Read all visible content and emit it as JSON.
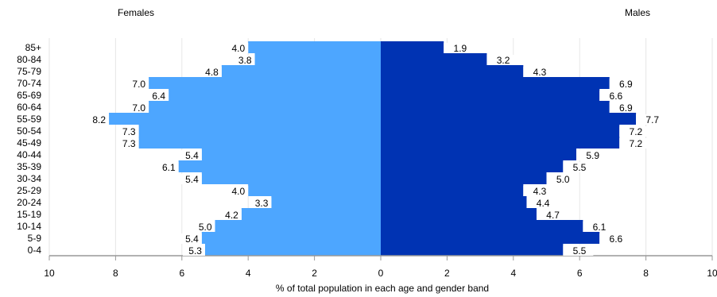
{
  "chart_data": {
    "type": "bar",
    "orientation": "horizontal",
    "layout": "population-pyramid",
    "categories": [
      "85+",
      "80-84",
      "75-79",
      "70-74",
      "65-69",
      "60-64",
      "55-59",
      "50-54",
      "45-49",
      "40-44",
      "35-39",
      "30-34",
      "25-29",
      "20-24",
      "15-19",
      "10-14",
      "5-9",
      "0-4"
    ],
    "series": [
      {
        "name": "Females",
        "side": "left",
        "color": "#4da6ff",
        "values": [
          4.0,
          3.8,
          4.8,
          7.0,
          6.4,
          7.0,
          8.2,
          7.3,
          7.3,
          5.4,
          6.1,
          5.4,
          4.0,
          3.3,
          4.2,
          5.0,
          5.4,
          5.3
        ]
      },
      {
        "name": "Males",
        "side": "right",
        "color": "#0033b3",
        "values": [
          1.9,
          3.2,
          4.3,
          6.9,
          6.6,
          6.9,
          7.7,
          7.2,
          7.2,
          5.9,
          5.5,
          5.0,
          4.3,
          4.4,
          4.7,
          6.1,
          6.6,
          5.5
        ]
      }
    ],
    "xlabel": "% of total population in each age and gender band",
    "xlim": [
      -10,
      10
    ],
    "xticks": [
      -10,
      -8,
      -6,
      -4,
      -2,
      0,
      2,
      4,
      6,
      8,
      10
    ],
    "xtick_labels": [
      "10",
      "8",
      "6",
      "4",
      "2",
      "0",
      "2",
      "4",
      "6",
      "8",
      "10"
    ],
    "grid": true,
    "data_labels": true
  }
}
